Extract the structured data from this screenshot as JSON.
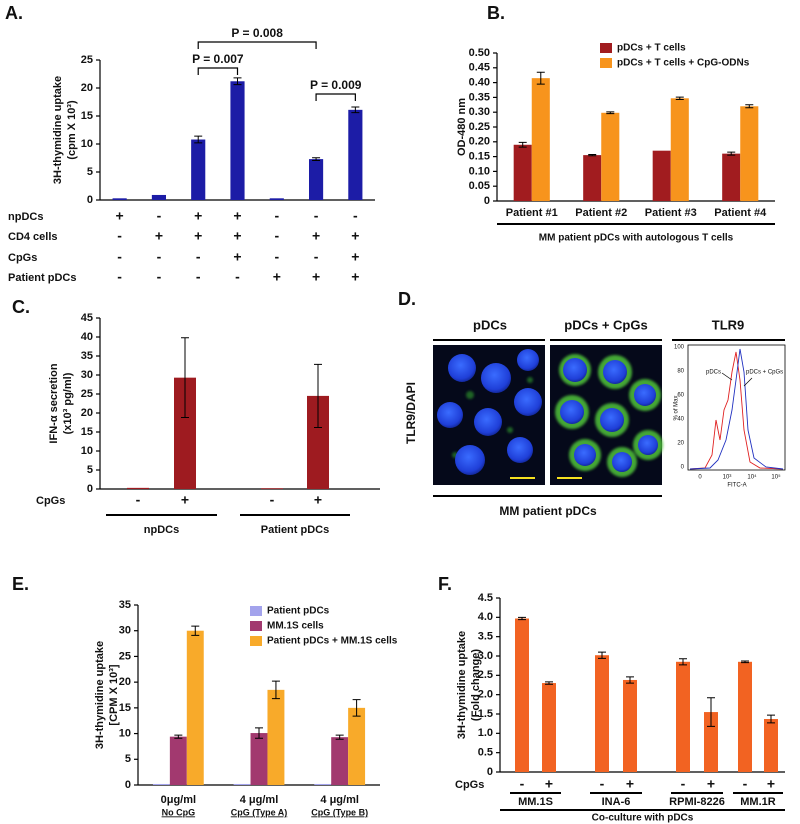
{
  "chart_data": [
    {
      "type": "bar",
      "title": "A.",
      "ylabel": [
        "3H-thymidine uptake",
        "(cpm X 10³)"
      ],
      "values": [
        0.3,
        0.9,
        10.8,
        21.2,
        0.3,
        7.3,
        16.1
      ],
      "errors": [
        null,
        null,
        0.6,
        0.6,
        null,
        0.25,
        0.5
      ],
      "color": "#1c1ca6",
      "ylim": [
        0,
        25
      ],
      "yticks": [
        0,
        5,
        10,
        15,
        20,
        25
      ],
      "annotations": [
        "P = 0.008",
        "P = 0.007",
        "P = 0.009"
      ],
      "condition_rows": [
        {
          "name": "npDCs",
          "values": [
            "+",
            "-",
            "+",
            "+",
            "-",
            "-",
            "-"
          ]
        },
        {
          "name": "CD4 cells",
          "values": [
            "-",
            "+",
            "+",
            "+",
            "-",
            "+",
            "+"
          ]
        },
        {
          "name": "CpGs",
          "values": [
            "-",
            "-",
            "-",
            "+",
            "-",
            "-",
            "+"
          ]
        },
        {
          "name": "Patient pDCs",
          "values": [
            "-",
            "-",
            "-",
            "-",
            "+",
            "+",
            "+"
          ]
        }
      ]
    },
    {
      "type": "bar",
      "title": "B.",
      "ylabel": [
        "OD-480 nm"
      ],
      "categories": [
        "Patient #1",
        "Patient #2",
        "Patient #3",
        "Patient #4"
      ],
      "xlabel": "MM patient pDCs with autologous T cells",
      "legend": "upper center",
      "series": [
        {
          "name": "pDCs + T cells",
          "color": "#a11c1f",
          "values": [
            0.19,
            0.155,
            0.17,
            0.16
          ],
          "errors": [
            0.008,
            0.002,
            null,
            0.005
          ]
        },
        {
          "name": "pDCs + T cells + CpG-ODNs",
          "color": "#f7941d",
          "values": [
            0.415,
            0.298,
            0.347,
            0.32
          ],
          "errors": [
            0.02,
            0.003,
            0.004,
            0.005
          ]
        }
      ],
      "ylim": [
        0,
        0.5
      ],
      "yticks": [
        0,
        0.05,
        {
          "value": 0.1,
          "label": "0.10"
        },
        0.15,
        {
          "value": 0.2,
          "label": "0.20"
        },
        0.25,
        {
          "value": 0.3,
          "label": "0.30"
        },
        0.35,
        {
          "value": 0.4,
          "label": "0.40"
        },
        0.45,
        {
          "value": 0.5,
          "label": "0.50"
        }
      ]
    },
    {
      "type": "bar",
      "title": "C.",
      "ylabel": [
        "IFN-α secretion",
        "(x10³ pg/ml)"
      ],
      "values": [
        0.3,
        29.3,
        0.2,
        24.5
      ],
      "errors": [
        null,
        10.5,
        null,
        8.3
      ],
      "color": "#9e1b20",
      "ylim": [
        0,
        45
      ],
      "yticks": [
        0,
        5,
        10,
        15,
        20,
        25,
        30,
        35,
        40,
        45
      ],
      "condition_rows": [
        {
          "name": "CpGs",
          "values": [
            "-",
            "+",
            "-",
            "+"
          ]
        }
      ],
      "groups": [
        "npDCs",
        "Patient pDCs"
      ]
    },
    {
      "type": "bar",
      "title": "E.",
      "ylabel": [
        "3H-thymidine uptake",
        "[CPM X 10³]"
      ],
      "categories": [
        "0μg/ml",
        "4 μg/ml",
        "4 μg/ml"
      ],
      "category_notes": [
        "No CpG",
        "CpG (Type A)",
        "CpG (Type B)"
      ],
      "legend": "upper right",
      "series": [
        {
          "name": "Patient pDCs",
          "color": "#a3a3ec",
          "values": [
            0.2,
            0.2,
            0.2
          ],
          "errors": [
            null,
            null,
            null
          ]
        },
        {
          "name": "MM.1S cells",
          "color": "#a2396f",
          "values": [
            9.4,
            10.1,
            9.3
          ],
          "errors": [
            0.3,
            1.0,
            0.4
          ]
        },
        {
          "name": "Patient pDCs + MM.1S cells",
          "color": "#f8aa2a",
          "values": [
            30,
            18.5,
            15
          ],
          "errors": [
            0.9,
            1.7,
            1.6
          ]
        }
      ],
      "ylim": [
        0,
        35
      ],
      "yticks": [
        0,
        5,
        10,
        15,
        20,
        25,
        30,
        35
      ]
    },
    {
      "type": "bar",
      "title": "F.",
      "ylabel": [
        "3H-thymidine uptake",
        "(Fold change)"
      ],
      "values": [
        3.97,
        2.3,
        3.02,
        2.38,
        2.85,
        1.55,
        2.85,
        1.37
      ],
      "errors": [
        0.03,
        0.03,
        0.08,
        0.08,
        0.08,
        0.37,
        0.02,
        0.1
      ],
      "color": "#f26322",
      "ylim": [
        0,
        4.5
      ],
      "yticks": [
        0,
        0.5,
        {
          "value": 1,
          "label": "1.0"
        },
        1.5,
        {
          "value": 2,
          "label": "2.0"
        },
        2.5,
        {
          "value": 3,
          "label": "3.0"
        },
        3.5,
        {
          "value": 4,
          "label": "4.0"
        },
        4.5
      ],
      "condition_rows": [
        {
          "name": "CpGs",
          "values": [
            "-",
            "+",
            "-",
            "+",
            "-",
            "+",
            "-",
            "+"
          ]
        }
      ],
      "groups": [
        "MM.1S",
        "INA-6",
        "RPMI-8226",
        "MM.1R"
      ],
      "xlabel": "Co-culture with pDCs"
    }
  ],
  "panel_d": {
    "title": "D.",
    "stain_label": "TLR9/DAPI",
    "headers": [
      "pDCs",
      "pDCs + CpGs",
      "TLR9"
    ],
    "caption": "MM patient pDCs",
    "histogram": {
      "ylabel": "% of Max",
      "xlabel": "FITC-A",
      "yticks": [
        100,
        80,
        60,
        40,
        20,
        0
      ],
      "xticks": [
        "0",
        "10³",
        "10⁴",
        "10⁵"
      ],
      "annotations": [
        "pDCs",
        "pDCs + CpGs"
      ]
    }
  }
}
